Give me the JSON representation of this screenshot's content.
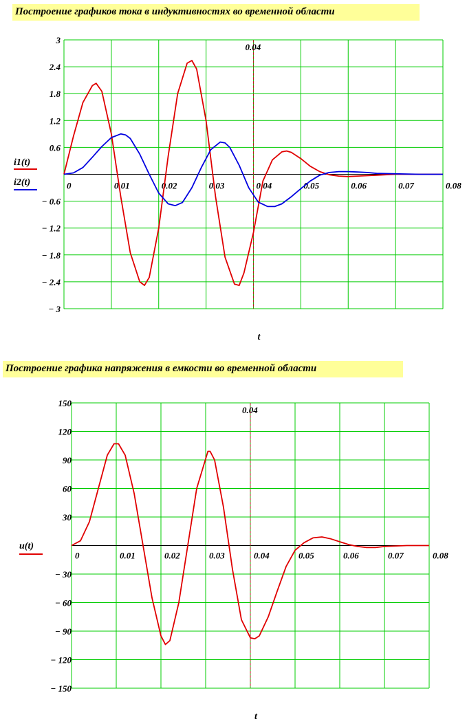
{
  "headings": {
    "currents": "Построение графиков   тока в индуктивностях во временной области",
    "voltage": "Построение графика   напряжения в емкости  во временной области"
  },
  "colors": {
    "grid": "#00cc00",
    "series_red": "#e00000",
    "series_blue": "#0000e0",
    "marker": "#b22222"
  },
  "chart_data": [
    {
      "type": "line",
      "title": "",
      "xlabel": "t",
      "xlim": [
        0,
        0.08
      ],
      "ylim": [
        -3,
        3
      ],
      "x_ticks": [
        0,
        0.01,
        0.02,
        0.03,
        0.04,
        0.05,
        0.06,
        0.07,
        0.08
      ],
      "x_tick_labels": [
        "0",
        "0.01",
        "0.02",
        "0.03",
        "0.04",
        "0.05",
        "0.06",
        "0.07",
        "0.08"
      ],
      "y_ticks": [
        -3,
        -2.4,
        -1.8,
        -1.2,
        -0.6,
        0,
        0.6,
        1.2,
        1.8,
        2.4,
        3
      ],
      "y_tick_labels": [
        "− 3",
        "− 2.4",
        "− 1.8",
        "− 1.2",
        "− 0.6",
        "",
        "0.6",
        "1.2",
        "1.8",
        "2.4",
        "3"
      ],
      "marker": {
        "x": 0.04,
        "label": "0.04"
      },
      "grid": true,
      "legend_position": "left",
      "series": [
        {
          "name": "i1(t)",
          "color": "#e00000",
          "x": [
            0,
            0.002,
            0.004,
            0.006,
            0.0068,
            0.008,
            0.01,
            0.012,
            0.014,
            0.016,
            0.017,
            0.018,
            0.02,
            0.022,
            0.024,
            0.026,
            0.027,
            0.028,
            0.03,
            0.032,
            0.034,
            0.036,
            0.037,
            0.038,
            0.04,
            0.042,
            0.044,
            0.046,
            0.047,
            0.048,
            0.05,
            0.052,
            0.054,
            0.056,
            0.058,
            0.06,
            0.062,
            0.064,
            0.066,
            0.07,
            0.075,
            0.08
          ],
          "y": [
            0,
            0.85,
            1.6,
            1.98,
            2.03,
            1.85,
            0.9,
            -0.5,
            -1.75,
            -2.4,
            -2.48,
            -2.3,
            -1.2,
            0.4,
            1.8,
            2.48,
            2.54,
            2.35,
            1.2,
            -0.5,
            -1.85,
            -2.45,
            -2.48,
            -2.2,
            -1.3,
            -0.15,
            0.32,
            0.5,
            0.52,
            0.49,
            0.35,
            0.18,
            0.06,
            -0.01,
            -0.04,
            -0.05,
            -0.04,
            -0.03,
            -0.02,
            0,
            0,
            0
          ]
        },
        {
          "name": "i2(t)",
          "color": "#0000e0",
          "x": [
            0,
            0.002,
            0.004,
            0.006,
            0.008,
            0.01,
            0.012,
            0.013,
            0.014,
            0.016,
            0.018,
            0.02,
            0.022,
            0.0235,
            0.025,
            0.027,
            0.029,
            0.031,
            0.033,
            0.034,
            0.035,
            0.037,
            0.039,
            0.041,
            0.043,
            0.0445,
            0.046,
            0.048,
            0.05,
            0.052,
            0.054,
            0.056,
            0.058,
            0.06,
            0.062,
            0.064,
            0.066,
            0.07,
            0.075,
            0.08
          ],
          "y": [
            0,
            0.03,
            0.15,
            0.38,
            0.62,
            0.82,
            0.9,
            0.88,
            0.8,
            0.45,
            0.0,
            -0.42,
            -0.66,
            -0.7,
            -0.63,
            -0.3,
            0.15,
            0.55,
            0.72,
            0.7,
            0.6,
            0.2,
            -0.3,
            -0.62,
            -0.72,
            -0.72,
            -0.66,
            -0.5,
            -0.32,
            -0.15,
            -0.02,
            0.04,
            0.06,
            0.06,
            0.05,
            0.04,
            0.02,
            0.01,
            0,
            0
          ]
        }
      ]
    },
    {
      "type": "line",
      "title": "",
      "xlabel": "t",
      "xlim": [
        0,
        0.08
      ],
      "ylim": [
        -150,
        150
      ],
      "x_ticks": [
        0,
        0.01,
        0.02,
        0.03,
        0.04,
        0.05,
        0.06,
        0.07,
        0.08
      ],
      "x_tick_labels": [
        "0",
        "0.01",
        "0.02",
        "0.03",
        "0.04",
        "0.05",
        "0.06",
        "0.07",
        "0.08"
      ],
      "y_ticks": [
        -150,
        -120,
        -90,
        -60,
        -30,
        0,
        30,
        60,
        90,
        120,
        150
      ],
      "y_tick_labels": [
        "− 150",
        "− 120",
        "− 90",
        "− 60",
        "− 30",
        "",
        "30",
        "60",
        "90",
        "120",
        "150"
      ],
      "marker": {
        "x": 0.04,
        "label": "0.04"
      },
      "grid": true,
      "legend_position": "left",
      "series": [
        {
          "name": "u(t)",
          "color": "#e00000",
          "x": [
            0,
            0.002,
            0.004,
            0.006,
            0.008,
            0.0095,
            0.0105,
            0.012,
            0.014,
            0.016,
            0.018,
            0.02,
            0.021,
            0.022,
            0.024,
            0.026,
            0.028,
            0.0305,
            0.031,
            0.032,
            0.034,
            0.036,
            0.038,
            0.04,
            0.041,
            0.042,
            0.044,
            0.046,
            0.048,
            0.05,
            0.052,
            0.054,
            0.056,
            0.058,
            0.06,
            0.062,
            0.064,
            0.066,
            0.068,
            0.07,
            0.075,
            0.08
          ],
          "y": [
            0,
            5,
            25,
            60,
            95,
            107,
            107,
            95,
            55,
            0,
            -55,
            -95,
            -104,
            -100,
            -60,
            0,
            60,
            99,
            99,
            90,
            40,
            -25,
            -78,
            -97,
            -98,
            -95,
            -75,
            -48,
            -22,
            -5,
            3,
            8,
            9,
            7,
            4,
            1,
            -1,
            -2,
            -2,
            -1,
            0,
            0
          ]
        }
      ]
    }
  ]
}
